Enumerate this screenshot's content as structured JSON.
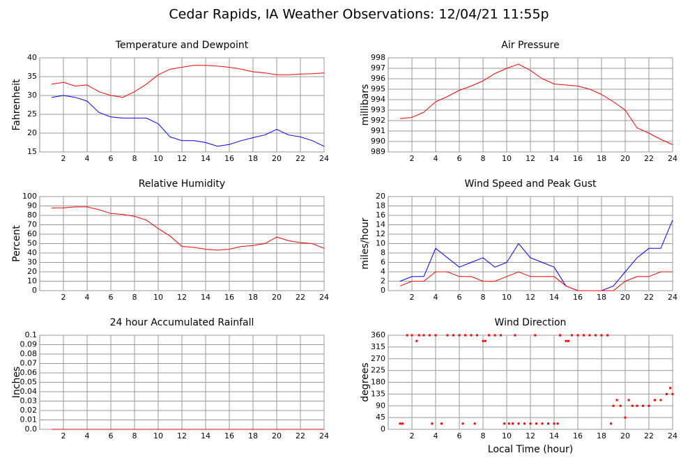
{
  "title": "Cedar Rapids, IA Weather Observations: 12/04/21 11:55p",
  "chart_data": [
    {
      "type": "line",
      "title": "Temperature and Dewpoint",
      "ylabel": "Fahrenheit",
      "xlim": [
        0,
        24
      ],
      "xticks": [
        2,
        4,
        6,
        8,
        10,
        12,
        14,
        16,
        18,
        20,
        22,
        24
      ],
      "ylim": [
        15,
        40
      ],
      "yticks": [
        15,
        20,
        25,
        30,
        35,
        40
      ],
      "grid": true,
      "x": [
        1,
        2,
        3,
        4,
        5,
        6,
        7,
        8,
        9,
        10,
        11,
        12,
        13,
        14,
        15,
        16,
        17,
        18,
        19,
        20,
        21,
        22,
        23,
        24
      ],
      "series": [
        {
          "color": "#ff0000",
          "values": [
            33,
            33.5,
            32.5,
            32.8,
            31,
            30,
            29.5,
            31,
            33,
            35.5,
            37,
            37.5,
            38,
            38,
            37.8,
            37.5,
            37,
            36.3,
            36,
            35.5,
            35.5,
            35.7,
            35.8,
            36
          ]
        },
        {
          "color": "#0000ff",
          "values": [
            29.5,
            30,
            29.5,
            28.5,
            25.5,
            24.3,
            24,
            24,
            24,
            22.5,
            19,
            18,
            18,
            17.5,
            16.5,
            17,
            18,
            18.8,
            19.5,
            21,
            19.5,
            19,
            18,
            16.5
          ]
        }
      ]
    },
    {
      "type": "line",
      "title": "Air Pressure",
      "ylabel": "millibars",
      "xlim": [
        0,
        24
      ],
      "xticks": [
        2,
        4,
        6,
        8,
        10,
        12,
        14,
        16,
        18,
        20,
        22,
        24
      ],
      "ylim": [
        989,
        998
      ],
      "yticks": [
        989,
        990,
        991,
        992,
        993,
        994,
        995,
        996,
        997,
        998
      ],
      "grid": true,
      "x": [
        1,
        2,
        3,
        4,
        5,
        6,
        7,
        8,
        9,
        10,
        11,
        12,
        13,
        14,
        15,
        16,
        17,
        18,
        19,
        20,
        21,
        22,
        23,
        24
      ],
      "series": [
        {
          "color": "#ff0000",
          "values": [
            992.2,
            992.3,
            992.8,
            993.8,
            994.3,
            994.9,
            995.3,
            995.8,
            996.5,
            997,
            997.4,
            996.8,
            996,
            995.5,
            995.4,
            995.3,
            995,
            994.5,
            993.8,
            993,
            991.3,
            990.8,
            990.2,
            989.7
          ]
        }
      ]
    },
    {
      "type": "line",
      "title": "Relative Humidity",
      "ylabel": "Percent",
      "xlim": [
        0,
        24
      ],
      "xticks": [
        2,
        4,
        6,
        8,
        10,
        12,
        14,
        16,
        18,
        20,
        22,
        24
      ],
      "ylim": [
        0,
        100
      ],
      "yticks": [
        0,
        10,
        20,
        30,
        40,
        50,
        60,
        70,
        80,
        90,
        100
      ],
      "grid": true,
      "x": [
        1,
        2,
        3,
        4,
        5,
        6,
        7,
        8,
        9,
        10,
        11,
        12,
        13,
        14,
        15,
        16,
        17,
        18,
        19,
        20,
        21,
        22,
        23,
        24
      ],
      "series": [
        {
          "color": "#ff0000",
          "values": [
            88,
            88,
            89,
            89,
            86,
            82,
            81,
            79,
            75,
            66,
            58,
            47,
            46,
            44,
            43,
            44,
            47,
            48,
            50,
            57,
            53,
            51,
            50,
            45
          ]
        }
      ]
    },
    {
      "type": "line",
      "title": "Wind Speed and Peak Gust",
      "ylabel": "miles/hour",
      "xlim": [
        0,
        24
      ],
      "xticks": [
        2,
        4,
        6,
        8,
        10,
        12,
        14,
        16,
        18,
        20,
        22,
        24
      ],
      "ylim": [
        0,
        20
      ],
      "yticks": [
        0,
        2,
        4,
        6,
        8,
        10,
        12,
        14,
        16,
        18,
        20
      ],
      "grid": true,
      "x": [
        1,
        2,
        3,
        4,
        5,
        6,
        7,
        8,
        9,
        10,
        11,
        12,
        13,
        14,
        15,
        16,
        17,
        18,
        19,
        20,
        21,
        22,
        23,
        24
      ],
      "series": [
        {
          "color": "#0000ff",
          "values": [
            2,
            3,
            3,
            9,
            7,
            5,
            6,
            7,
            5,
            6,
            10,
            7,
            6,
            5,
            1,
            0,
            0,
            0,
            1,
            4,
            7,
            9,
            9,
            15
          ]
        },
        {
          "color": "#ff0000",
          "values": [
            1,
            2,
            2,
            4,
            4,
            3,
            3,
            2,
            2,
            3,
            4,
            3,
            3,
            3,
            1,
            0,
            0,
            0,
            0,
            2,
            3,
            3,
            4,
            4
          ]
        }
      ]
    },
    {
      "type": "line",
      "title": "24 hour Accumulated Rainfall",
      "ylabel": "Inches",
      "xlim": [
        0,
        24
      ],
      "xticks": [
        2,
        4,
        6,
        8,
        10,
        12,
        14,
        16,
        18,
        20,
        22,
        24
      ],
      "ylim": [
        0,
        0.1
      ],
      "yticks": [
        {
          "value": 0,
          "label": "0.0"
        },
        0.01,
        0.02,
        0.03,
        0.04,
        0.05,
        0.06,
        0.07,
        0.08,
        0.09,
        0.1
      ],
      "grid": true,
      "x": [
        1,
        24
      ],
      "series": [
        {
          "color": "#ff0000",
          "values": [
            0,
            0
          ]
        }
      ]
    },
    {
      "type": "scatter",
      "title": "Wind Direction",
      "ylabel": "degrees",
      "xlabel": "Local Time (hour)",
      "xlim": [
        0,
        24
      ],
      "xticks": [
        2,
        4,
        6,
        8,
        10,
        12,
        14,
        16,
        18,
        20,
        22,
        24
      ],
      "ylim": [
        0,
        360
      ],
      "yticks": [
        0,
        45,
        90,
        135,
        180,
        225,
        270,
        315,
        360
      ],
      "grid": true,
      "color": "#ff0000",
      "x": [
        1,
        1.2,
        1.6,
        2,
        2.4,
        2.6,
        3,
        3.5,
        3.7,
        4,
        4.5,
        5,
        5.5,
        6,
        6.3,
        6.5,
        7,
        7.3,
        7.5,
        8,
        8.2,
        8.5,
        9,
        9.5,
        9.8,
        10.2,
        10.5,
        11,
        11.5,
        12,
        12.5,
        13,
        13.5,
        14,
        14.3,
        10.7,
        12.4,
        14.5,
        15,
        15.2,
        15.5,
        16,
        16.5,
        17,
        17.5,
        18,
        18.5,
        18.8,
        19,
        19.3,
        19.6,
        20,
        20.3,
        20.6,
        21,
        21.5,
        22,
        22.5,
        23,
        23.5,
        23.8,
        24
      ],
      "values": [
        22,
        22,
        360,
        360,
        338,
        360,
        360,
        360,
        22,
        360,
        22,
        360,
        360,
        360,
        22,
        360,
        360,
        22,
        360,
        338,
        338,
        360,
        360,
        360,
        22,
        22,
        22,
        22,
        22,
        22,
        22,
        22,
        22,
        22,
        22,
        360,
        360,
        360,
        338,
        338,
        360,
        360,
        360,
        360,
        360,
        360,
        360,
        22,
        90,
        112,
        90,
        45,
        112,
        90,
        90,
        90,
        90,
        112,
        112,
        135,
        158,
        135
      ]
    }
  ]
}
